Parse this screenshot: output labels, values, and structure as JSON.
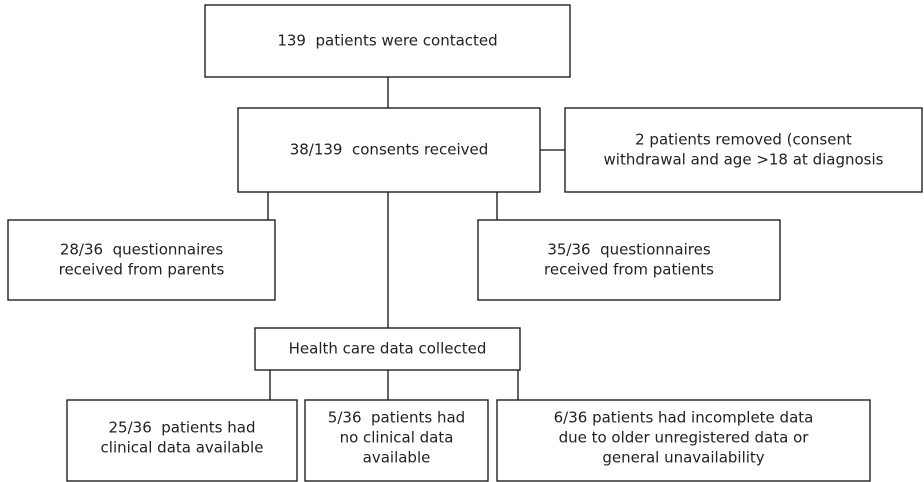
{
  "nodes": [
    {
      "lines": [
        "139  patients were contacted"
      ]
    },
    {
      "lines": [
        "38/139  consents received"
      ]
    },
    {
      "lines": [
        "2 patients removed (consent",
        "withdrawal and age >18 at diagnosis"
      ]
    },
    {
      "lines": [
        "28/36  questionnaires",
        "received from parents"
      ]
    },
    {
      "lines": [
        "35/36  questionnaires",
        "received from patients"
      ]
    },
    {
      "lines": [
        "Health care data collected"
      ]
    },
    {
      "lines": [
        "25/36  patients had",
        "clinical data available"
      ]
    },
    {
      "lines": [
        "5/36  patients had",
        "no clinical data",
        "available"
      ]
    },
    {
      "lines": [
        "6/36 patients had incomplete data",
        "due to older unregistered data or",
        "general unavailability"
      ]
    }
  ]
}
